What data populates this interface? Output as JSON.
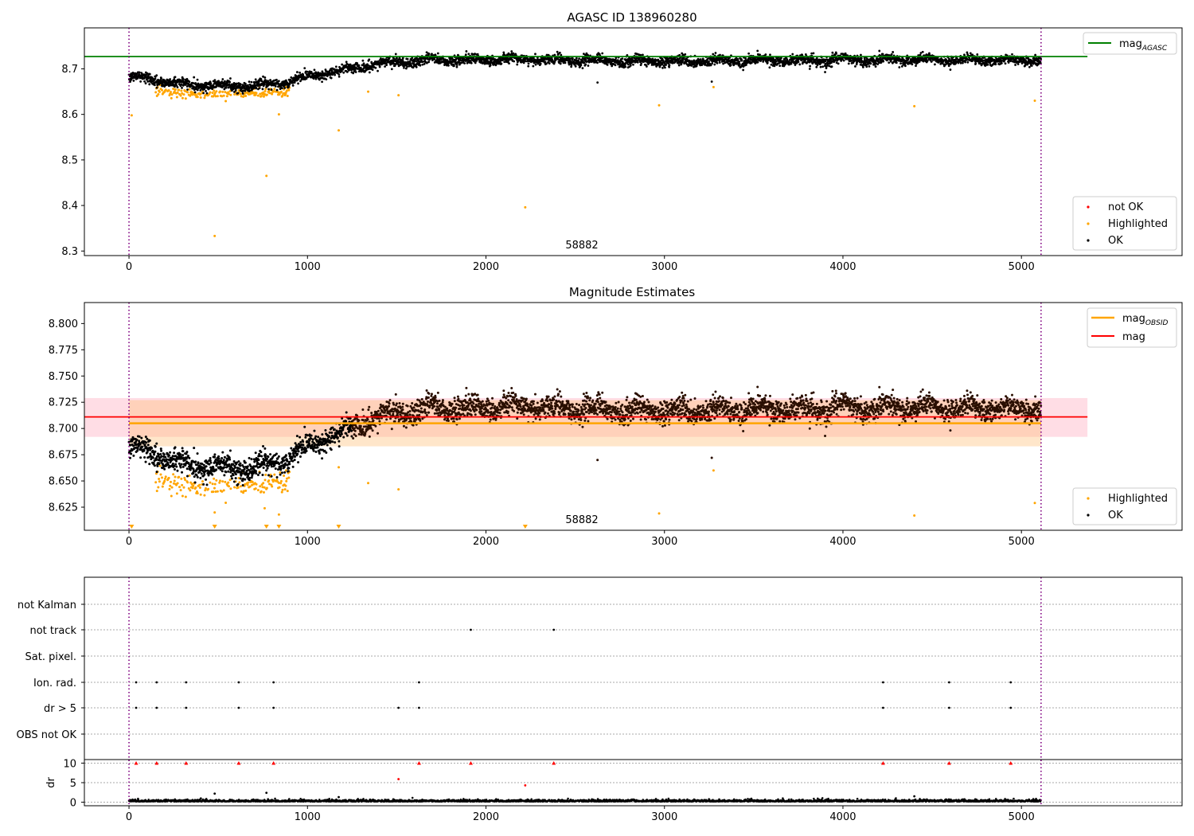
{
  "chart_data": [
    {
      "type": "scatter",
      "title": "AGASC ID 138960280",
      "xlim": [
        -250,
        5900
      ],
      "ylim": [
        8.29,
        8.79
      ],
      "xticks": [
        0,
        1000,
        2000,
        3000,
        4000,
        5000
      ],
      "yticks": [
        8.3,
        8.4,
        8.5,
        8.6,
        8.7
      ],
      "vlines": [
        0,
        5110
      ],
      "annotation": "58882",
      "hline": {
        "name": "mag_AGASC",
        "value": 8.727
      },
      "legend_lines": [
        {
          "name": "mag",
          "subscript": "AGASC",
          "color": "#008000"
        }
      ],
      "legend_points": [
        {
          "name": "not OK",
          "color": "#ff0000"
        },
        {
          "name": "Highlighted",
          "color": "#ffa500"
        },
        {
          "name": "OK",
          "color": "#000000"
        }
      ],
      "series": [
        {
          "name": "OK",
          "color": "#000000",
          "points": [
            [
              0,
              8.682
            ],
            [
              100,
              8.679
            ],
            [
              200,
              8.672
            ],
            [
              300,
              8.666
            ],
            [
              400,
              8.665
            ],
            [
              500,
              8.664
            ],
            [
              600,
              8.662
            ],
            [
              700,
              8.663
            ],
            [
              800,
              8.667
            ],
            [
              900,
              8.672
            ],
            [
              1000,
              8.684
            ],
            [
              1100,
              8.69
            ],
            [
              1200,
              8.698
            ],
            [
              1300,
              8.704
            ],
            [
              1400,
              8.712
            ],
            [
              1500,
              8.715
            ],
            [
              1600,
              8.716
            ],
            [
              1700,
              8.72
            ],
            [
              1800,
              8.72
            ],
            [
              1900,
              8.72
            ],
            [
              2000,
              8.72
            ],
            [
              2200,
              8.722
            ],
            [
              2500,
              8.718
            ],
            [
              3000,
              8.717
            ],
            [
              3500,
              8.718
            ],
            [
              4000,
              8.72
            ],
            [
              4500,
              8.72
            ],
            [
              5000,
              8.718
            ],
            [
              5110,
              8.72
            ],
            [
              2625,
              8.67
            ],
            [
              3265,
              8.672
            ]
          ]
        },
        {
          "name": "Highlighted",
          "color": "#ffa500",
          "points": [
            [
              15,
              8.598
            ],
            [
              480,
              8.333
            ],
            [
              770,
              8.465
            ],
            [
              840,
              8.6
            ],
            [
              1175,
              8.565
            ],
            [
              1340,
              8.65
            ],
            [
              1510,
              8.642
            ],
            [
              2220,
              8.396
            ],
            [
              2970,
              8.62
            ],
            [
              3275,
              8.66
            ],
            [
              4400,
              8.618
            ],
            [
              5075,
              8.63
            ],
            [
              160,
              8.66
            ],
            [
              200,
              8.65
            ],
            [
              260,
              8.655
            ],
            [
              350,
              8.65
            ],
            [
              450,
              8.645
            ],
            [
              550,
              8.64
            ],
            [
              600,
              8.648
            ],
            [
              650,
              8.652
            ],
            [
              700,
              8.656
            ],
            [
              760,
              8.645
            ],
            [
              880,
              8.66
            ]
          ]
        }
      ]
    },
    {
      "type": "scatter",
      "title": "Magnitude Estimates",
      "xlim": [
        -250,
        5900
      ],
      "ylim": [
        8.603,
        8.82
      ],
      "xticks": [
        0,
        1000,
        2000,
        3000,
        4000,
        5000
      ],
      "yticks": [
        8.625,
        8.65,
        8.675,
        8.7,
        8.725,
        8.75,
        8.775,
        8.8
      ],
      "vlines": [
        0,
        5110
      ],
      "annotation": "58882",
      "mag": {
        "value": 8.711,
        "band": [
          8.692,
          8.729
        ],
        "x_end": 5370,
        "color": "#ff0000"
      },
      "mag_obsid": {
        "value": 8.705,
        "band": [
          8.683,
          8.727
        ],
        "color": "#ffa500"
      },
      "legend_lines": [
        {
          "name": "mag",
          "subscript": "OBSID",
          "color": "#ffa500"
        },
        {
          "name": "mag",
          "subscript": "",
          "color": "#ff0000"
        }
      ],
      "legend_points": [
        {
          "name": "Highlighted",
          "color": "#ffa500"
        },
        {
          "name": "OK",
          "color": "#000000"
        }
      ],
      "series": [
        {
          "name": "Highlighted",
          "color": "#ffa500",
          "points": [
            [
              480,
              8.62
            ],
            [
              1340,
              8.648
            ],
            [
              1510,
              8.642
            ],
            [
              2970,
              8.619
            ],
            [
              3275,
              8.66
            ],
            [
              4400,
              8.617
            ],
            [
              5075,
              8.629
            ],
            [
              760,
              8.624
            ],
            [
              840,
              8.618
            ],
            [
              1175,
              8.663
            ],
            [
              880,
              8.66
            ]
          ]
        },
        {
          "name": "Highlighted (off-scale)",
          "color": "#ffa500",
          "points": [
            [
              15,
              8.605
            ],
            [
              480,
              8.605
            ],
            [
              770,
              8.605
            ],
            [
              840,
              8.605
            ],
            [
              1175,
              8.605
            ],
            [
              2220,
              8.605
            ]
          ]
        }
      ]
    },
    {
      "type": "scatter",
      "title": "",
      "xlim": [
        -250,
        5900
      ],
      "xticks": [
        0,
        1000,
        2000,
        3000,
        4000,
        5000
      ],
      "vlines": [
        0,
        5110
      ],
      "flag_categories": [
        "not Kalman",
        "not track",
        "Sat. pixel.",
        "Ion. rad.",
        "dr > 5",
        "OBS not OK"
      ],
      "flags": {
        "not track": [
          1915,
          2380
        ],
        "Ion. rad.": [
          40,
          155,
          320,
          615,
          810,
          1625,
          4225,
          4595,
          4940
        ],
        "dr > 5": [
          40,
          155,
          320,
          615,
          810,
          1510,
          1625,
          4225,
          4595,
          4940
        ]
      },
      "dr": {
        "ylabel": "dr",
        "yticks": [
          0,
          5,
          10
        ],
        "ylim": [
          -0.5,
          10.5
        ],
        "capped": [
          40,
          155,
          320,
          615,
          810,
          1625,
          1915,
          2380,
          4225,
          4595,
          4940
        ],
        "outliers": [
          [
            1510,
            5.9
          ],
          [
            2220,
            4.3
          ],
          [
            480,
            2.2
          ],
          [
            770,
            2.4
          ],
          [
            1175,
            1.3
          ],
          [
            4400,
            1.5
          ]
        ]
      }
    }
  ]
}
